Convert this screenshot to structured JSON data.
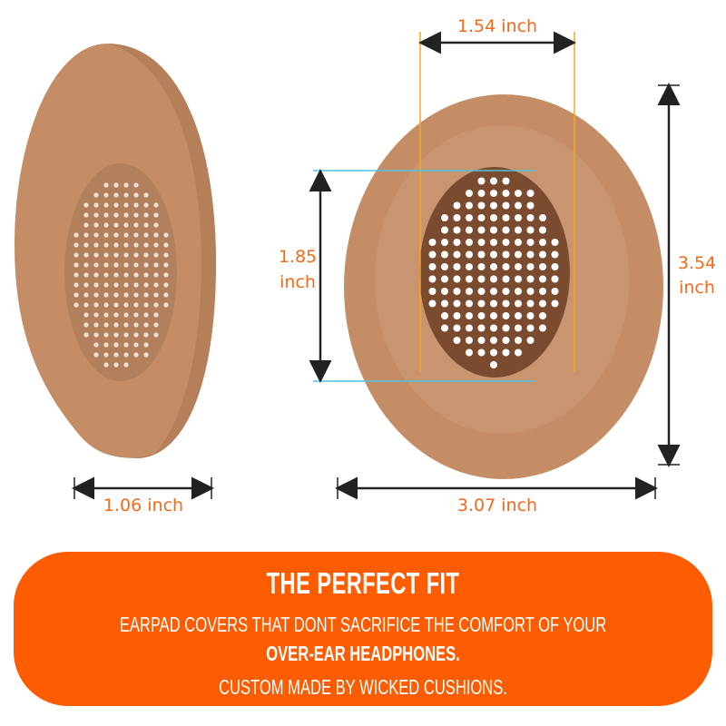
{
  "dimensions": {
    "inner_width": "1.54 inch",
    "inner_height_value": "1.85",
    "inner_height_unit": "inch",
    "outer_height_value": "3.54",
    "outer_height_unit": "inch",
    "outer_width": "3.07 inch",
    "depth": "1.06 inch"
  },
  "banner": {
    "title": "THE PERFECT FIT",
    "line1": "EARPAD COVERS THAT DONT SACRIFICE THE COMFORT OF YOUR",
    "line2": "OVER-EAR HEADPHONES.",
    "line3": "CUSTOM MADE BY WICKED CUSHIONS."
  },
  "colors": {
    "banner": "#fe5c00",
    "dimension_text": "#f26a1b",
    "earpad": "#c48d66",
    "earpad_inner": "#7b4b30",
    "guide_orange": "#f5a623",
    "guide_cyan": "#4fc3e0"
  }
}
